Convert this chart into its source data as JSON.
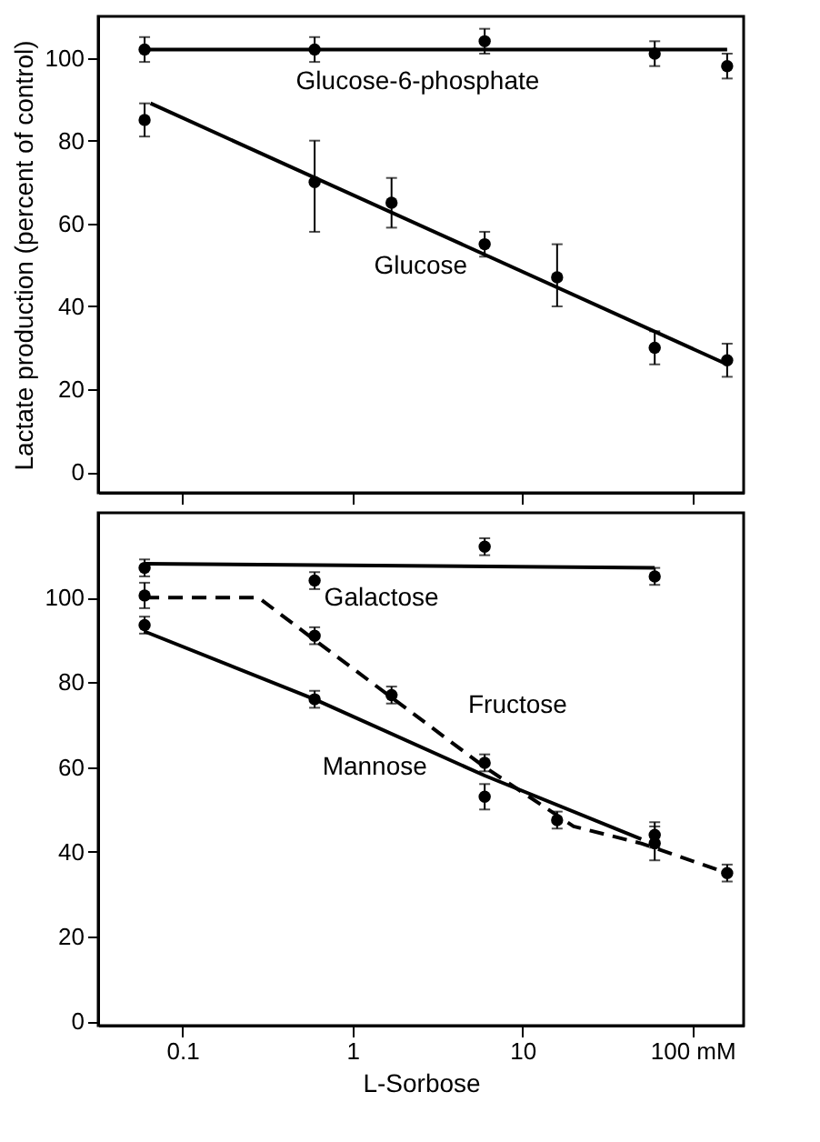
{
  "chart_data": [
    {
      "type": "scatter",
      "ylabel": "Lactate production (percent of control)",
      "xlim": [
        0.032,
        200
      ],
      "xticks": [
        0.1,
        1,
        10,
        100
      ],
      "ylim": [
        -5,
        110
      ],
      "yticks": [
        0,
        20,
        40,
        60,
        80,
        100
      ],
      "log": "x",
      "grid": false,
      "tick_labels": "y",
      "series": [
        {
          "color": "#000000",
          "marker": "circle",
          "x": [
            0.06,
            0.6,
            6,
            60,
            160
          ],
          "values": [
            102,
            102,
            104,
            101,
            98
          ],
          "errors": [
            3,
            3,
            3,
            3,
            3
          ]
        },
        {
          "type": "line",
          "name": "Glucose-6-phosphate",
          "color": "#000000",
          "marker": "none",
          "line_style": "solid",
          "x": [
            0.06,
            160
          ],
          "values": [
            102,
            102
          ]
        },
        {
          "color": "#000000",
          "marker": "circle",
          "x": [
            0.06,
            0.6,
            1.7,
            6,
            16,
            60,
            160
          ],
          "values": [
            85,
            70,
            65,
            55,
            47,
            30,
            27
          ],
          "errors": [
            4,
            [
              58,
              80
            ],
            6,
            3,
            [
              40,
              55
            ],
            4,
            4
          ]
        },
        {
          "type": "line",
          "name": "Glucose",
          "color": "#000000",
          "marker": "none",
          "line_style": "solid",
          "x": [
            0.065,
            160
          ],
          "values": [
            89,
            26
          ]
        }
      ]
    },
    {
      "type": "scatter",
      "xlabel": "L-Sorbose",
      "xlim": [
        0.032,
        200
      ],
      "xticks": [
        0.1,
        1,
        10,
        {
          "value": 100,
          "label": "100 mM"
        }
      ],
      "ylim": [
        -1,
        120
      ],
      "yticks": [
        0,
        20,
        40,
        60,
        80,
        100
      ],
      "log": "x",
      "grid": false,
      "series": [
        {
          "color": "#000000",
          "marker": "circle",
          "x": [
            0.06,
            0.6,
            6,
            60
          ],
          "values": [
            107,
            104,
            112,
            105
          ],
          "errors": [
            2,
            2,
            2,
            2
          ]
        },
        {
          "type": "line",
          "name": "Galactose",
          "color": "#000000",
          "marker": "none",
          "line_style": "solid",
          "x": [
            0.06,
            60
          ],
          "values": [
            108,
            107
          ]
        },
        {
          "color": "#000000",
          "marker": "circle",
          "x": [
            0.06,
            0.6,
            1.7,
            6,
            16,
            60,
            160
          ],
          "values": [
            100.5,
            91,
            77,
            61,
            47.5,
            42,
            35
          ],
          "errors": [
            3,
            2,
            2,
            2,
            2,
            4,
            2
          ]
        },
        {
          "type": "line",
          "name": "Fructose",
          "color": "#000000",
          "marker": "none",
          "line_style": "dashed",
          "x": [
            0.06,
            0.28,
            0.6,
            6,
            20,
            50,
            160
          ],
          "values": [
            100,
            100,
            90,
            60,
            46,
            42,
            35
          ]
        },
        {
          "color": "#000000",
          "marker": "circle",
          "x": [
            0.06,
            0.6,
            6,
            60
          ],
          "values": [
            93.5,
            76,
            53,
            44
          ],
          "errors": [
            2,
            2,
            3,
            3
          ]
        },
        {
          "type": "line",
          "name": "Mannose",
          "color": "#000000",
          "marker": "none",
          "line_style": "solid",
          "x": [
            0.06,
            0.6,
            6,
            50
          ],
          "values": [
            92,
            76,
            58,
            43
          ]
        }
      ]
    }
  ]
}
